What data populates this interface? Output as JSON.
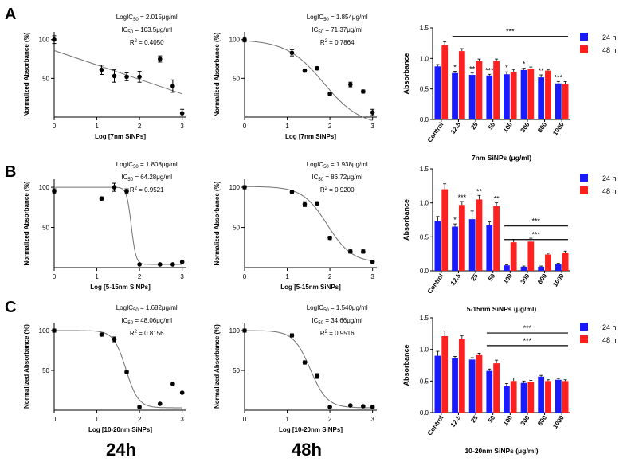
{
  "figure": {
    "bottom_labels": [
      "24h",
      "48h"
    ],
    "colors": {
      "series_24h": "#1a1aff",
      "series_48h": "#ff2020",
      "axis": "#000000",
      "fit": "#707070"
    }
  },
  "chart_data": [
    {
      "type": "scatter",
      "panel": "A",
      "col": 0,
      "xlabel": "Log [7nm SiNPs]",
      "ylabel": "Normalized Absorbance (%)",
      "xlim": [
        0,
        3.1
      ],
      "ylim": [
        0,
        110
      ],
      "xticks": [
        0,
        1,
        2,
        3
      ],
      "yticks": [
        50,
        100
      ],
      "points": [
        {
          "x": 0,
          "y": 100,
          "err": 5
        },
        {
          "x": 1.11,
          "y": 61,
          "err": 6
        },
        {
          "x": 1.41,
          "y": 53,
          "err": 8
        },
        {
          "x": 1.7,
          "y": 52,
          "err": 5
        },
        {
          "x": 2.0,
          "y": 52,
          "err": 7
        },
        {
          "x": 2.48,
          "y": 75,
          "err": 4
        },
        {
          "x": 2.78,
          "y": 40,
          "err": 8
        },
        {
          "x": 3.0,
          "y": 5,
          "err": 5
        }
      ],
      "fit": {
        "kind": "linear",
        "x": [
          0,
          3
        ],
        "y": [
          86,
          30
        ]
      },
      "annotations": [
        "LogIC50 = 2.015μg/ml",
        "IC50 = 103.5μg/ml",
        "R2 = 0.4050"
      ]
    },
    {
      "type": "scatter",
      "panel": "A",
      "col": 1,
      "xlabel": "Log [7nm SiNPs]",
      "ylabel": "Normalized Absorbance (%)",
      "xlim": [
        0,
        3.1
      ],
      "ylim": [
        0,
        110
      ],
      "xticks": [
        0,
        1,
        2,
        3
      ],
      "yticks": [
        50,
        100
      ],
      "points": [
        {
          "x": 0,
          "y": 100,
          "err": 3
        },
        {
          "x": 1.11,
          "y": 83,
          "err": 4
        },
        {
          "x": 1.41,
          "y": 60,
          "err": 2
        },
        {
          "x": 1.7,
          "y": 63,
          "err": 2
        },
        {
          "x": 2.0,
          "y": 30,
          "err": 2
        },
        {
          "x": 2.48,
          "y": 42,
          "err": 3
        },
        {
          "x": 2.78,
          "y": 33,
          "err": 2
        },
        {
          "x": 3.0,
          "y": 6,
          "err": 4
        }
      ],
      "fit": {
        "kind": "sigmoid",
        "top": 100,
        "bottom": -12,
        "logec50": 1.854,
        "hill": -1.0
      },
      "annotations": [
        "LogIC50 = 1.854μg/ml",
        "IC50 = 71.37μg/ml",
        "R2 = 0.7864"
      ]
    },
    {
      "type": "bar",
      "panel": "A",
      "col": 2,
      "xlabel": "7nm SiNPs (μg/ml)",
      "ylabel": "Absorbance",
      "ylim": [
        0,
        1.5
      ],
      "yticks": [
        0.0,
        0.5,
        1.0,
        1.5
      ],
      "ytick_labels": [
        "0.0",
        "0.5",
        "1.0",
        "1.5"
      ],
      "categories": [
        "Control",
        "12.5",
        "25",
        "50",
        "100",
        "300",
        "800",
        "1000"
      ],
      "series": [
        {
          "name": "24 h",
          "values": [
            0.87,
            0.76,
            0.73,
            0.72,
            0.74,
            0.81,
            0.69,
            0.59
          ],
          "err": [
            0.03,
            0.03,
            0.03,
            0.02,
            0.04,
            0.03,
            0.04,
            0.03
          ]
        },
        {
          "name": "48 h",
          "values": [
            1.22,
            1.12,
            0.96,
            0.96,
            0.78,
            0.83,
            0.8,
            0.58
          ],
          "err": [
            0.05,
            0.04,
            0.03,
            0.03,
            0.04,
            0.03,
            0.02,
            0.04
          ]
        }
      ],
      "stars": [
        {
          "i": 1,
          "text": "*"
        },
        {
          "i": 2,
          "text": "**"
        },
        {
          "i": 3,
          "text": "***"
        },
        {
          "i": 4,
          "text": "*"
        },
        {
          "i": 5,
          "text": "*"
        },
        {
          "i": 6,
          "text": "**"
        },
        {
          "i": 7,
          "text": "***"
        }
      ],
      "brackets": [
        {
          "from": 1,
          "to": 7,
          "y": 1.36,
          "text": "***"
        }
      ],
      "legend": [
        "24 h",
        "48 h"
      ]
    },
    {
      "type": "scatter",
      "panel": "B",
      "col": 0,
      "xlabel": "Log [5-15nm SiNPs]",
      "ylabel": "Normalized Absorbance (%)",
      "xlim": [
        0,
        3.1
      ],
      "ylim": [
        0,
        110
      ],
      "xticks": [
        0,
        1,
        2,
        3
      ],
      "yticks": [
        50,
        100
      ],
      "points": [
        {
          "x": 0,
          "y": 95,
          "err": 3
        },
        {
          "x": 1.11,
          "y": 86,
          "err": 2
        },
        {
          "x": 1.41,
          "y": 100,
          "err": 5
        },
        {
          "x": 1.7,
          "y": 95,
          "err": 3
        },
        {
          "x": 2.0,
          "y": 4,
          "err": 1
        },
        {
          "x": 2.48,
          "y": 4,
          "err": 1
        },
        {
          "x": 2.78,
          "y": 4,
          "err": 1
        },
        {
          "x": 3.0,
          "y": 7,
          "err": 1
        }
      ],
      "fit": {
        "kind": "sigmoid",
        "top": 100,
        "bottom": 4,
        "logec50": 1.808,
        "hill": -8.0
      },
      "annotations": [
        "LogIC50 = 1.808μg/ml",
        "IC50 = 64.28μg/ml",
        "R2 = 0.9521"
      ]
    },
    {
      "type": "scatter",
      "panel": "B",
      "col": 1,
      "xlabel": "Log [5-15nm SiNPs]",
      "ylabel": "Normalized Absorbance (%)",
      "xlim": [
        0,
        3.1
      ],
      "ylim": [
        0,
        110
      ],
      "xticks": [
        0,
        1,
        2,
        3
      ],
      "yticks": [
        50,
        100
      ],
      "points": [
        {
          "x": 0,
          "y": 100,
          "err": 2
        },
        {
          "x": 1.11,
          "y": 94,
          "err": 2
        },
        {
          "x": 1.41,
          "y": 79,
          "err": 3
        },
        {
          "x": 1.7,
          "y": 80,
          "err": 2
        },
        {
          "x": 2.0,
          "y": 37,
          "err": 2
        },
        {
          "x": 2.48,
          "y": 20,
          "err": 2
        },
        {
          "x": 2.78,
          "y": 20,
          "err": 2
        },
        {
          "x": 3.0,
          "y": 7,
          "err": 1
        }
      ],
      "fit": {
        "kind": "sigmoid",
        "top": 101,
        "bottom": 6,
        "logec50": 1.938,
        "hill": -1.5
      },
      "annotations": [
        "LogIC50 = 1.938μg/ml",
        "IC50 = 86.72μg/ml",
        "R2 = 0.9200"
      ]
    },
    {
      "type": "bar",
      "panel": "B",
      "col": 2,
      "xlabel": "5-15nm SiNPs (μg/ml)",
      "ylabel": "Absorbance",
      "ylim": [
        0,
        1.5
      ],
      "yticks": [
        0.0,
        0.5,
        1.0,
        1.5
      ],
      "ytick_labels": [
        "0.0",
        "0.5",
        "1.0",
        "1.5"
      ],
      "categories": [
        "Control",
        "12.5",
        "25",
        "50",
        "100",
        "300",
        "800",
        "1000"
      ],
      "series": [
        {
          "name": "24 h",
          "values": [
            0.73,
            0.65,
            0.76,
            0.67,
            0.08,
            0.06,
            0.06,
            0.1
          ],
          "err": [
            0.07,
            0.04,
            0.12,
            0.05,
            0.01,
            0.01,
            0.01,
            0.01
          ]
        },
        {
          "name": "48 h",
          "values": [
            1.2,
            0.97,
            1.05,
            0.95,
            0.42,
            0.43,
            0.24,
            0.27
          ],
          "err": [
            0.08,
            0.05,
            0.06,
            0.05,
            0.04,
            0.05,
            0.02,
            0.02
          ]
        }
      ],
      "stars": [
        {
          "i": 1,
          "text": "*"
        },
        {
          "i": 1,
          "text": "***",
          "s": 1
        },
        {
          "i": 2,
          "text": "**",
          "s": 1
        },
        {
          "i": 3,
          "text": "**",
          "s": 1
        }
      ],
      "brackets": [
        {
          "from": 4,
          "to": 7,
          "y": 0.66,
          "text": "***"
        },
        {
          "from": 4,
          "to": 7,
          "y": 0.46,
          "text": "***"
        }
      ],
      "legend": [
        "24 h",
        "48 h"
      ]
    },
    {
      "type": "scatter",
      "panel": "C",
      "col": 0,
      "xlabel": "Log [10-20nm SiNPs]",
      "ylabel": "Normalized Absorbance (%)",
      "xlim": [
        0,
        3.1
      ],
      "ylim": [
        0,
        110
      ],
      "xticks": [
        0,
        1,
        2,
        3
      ],
      "yticks": [
        50,
        100
      ],
      "points": [
        {
          "x": 0,
          "y": 100,
          "err": 2
        },
        {
          "x": 1.11,
          "y": 95,
          "err": 2
        },
        {
          "x": 1.41,
          "y": 89,
          "err": 3
        },
        {
          "x": 1.7,
          "y": 48,
          "err": 2
        },
        {
          "x": 2.0,
          "y": 4,
          "err": 2
        },
        {
          "x": 2.48,
          "y": 8,
          "err": 1
        },
        {
          "x": 2.78,
          "y": 33,
          "err": 1
        },
        {
          "x": 3.0,
          "y": 22,
          "err": 1
        }
      ],
      "fit": {
        "kind": "sigmoid",
        "top": 100,
        "bottom": 3,
        "logec50": 1.682,
        "hill": -3.0
      },
      "annotations": [
        "LogIC50 = 1.682μg/ml",
        "IC50 = 48.06μg/ml",
        "R2 = 0.8156"
      ]
    },
    {
      "type": "scatter",
      "panel": "C",
      "col": 1,
      "xlabel": "Log [10-20nm SiNPs]",
      "ylabel": "Normalized Absorbance (%)",
      "xlim": [
        0,
        3.1
      ],
      "ylim": [
        0,
        110
      ],
      "xticks": [
        0,
        1,
        2,
        3
      ],
      "yticks": [
        50,
        100
      ],
      "points": [
        {
          "x": 0,
          "y": 100,
          "err": 2
        },
        {
          "x": 1.11,
          "y": 94,
          "err": 2
        },
        {
          "x": 1.41,
          "y": 60,
          "err": 2
        },
        {
          "x": 1.7,
          "y": 43,
          "err": 3
        },
        {
          "x": 2.0,
          "y": 4,
          "err": 1
        },
        {
          "x": 2.48,
          "y": 6,
          "err": 1
        },
        {
          "x": 2.78,
          "y": 5,
          "err": 1
        },
        {
          "x": 3.0,
          "y": 4,
          "err": 1
        }
      ],
      "fit": {
        "kind": "sigmoid",
        "top": 100,
        "bottom": 3,
        "logec50": 1.54,
        "hill": -2.2
      },
      "annotations": [
        "LogIC50 = 1.540μg/ml",
        "IC50 = 34.66μg/ml",
        "R2 = 0.9516"
      ]
    },
    {
      "type": "bar",
      "panel": "C",
      "col": 2,
      "xlabel": "10-20nm SiNPs (μg/ml)",
      "ylabel": "Absorbance",
      "ylim": [
        0,
        1.5
      ],
      "yticks": [
        0.0,
        0.5,
        1.0,
        1.5
      ],
      "ytick_labels": [
        "0.0",
        "0.5",
        "1.0",
        "1.5"
      ],
      "categories": [
        "Control",
        "12.5",
        "25",
        "50",
        "100",
        "300",
        "800",
        "1000"
      ],
      "series": [
        {
          "name": "24 h",
          "values": [
            0.9,
            0.86,
            0.84,
            0.66,
            0.42,
            0.47,
            0.57,
            0.52
          ],
          "err": [
            0.07,
            0.03,
            0.03,
            0.03,
            0.04,
            0.03,
            0.02,
            0.02
          ]
        },
        {
          "name": "48 h",
          "values": [
            1.21,
            1.16,
            0.91,
            0.78,
            0.5,
            0.48,
            0.5,
            0.5
          ],
          "err": [
            0.08,
            0.06,
            0.03,
            0.05,
            0.05,
            0.03,
            0.02,
            0.02
          ]
        }
      ],
      "stars": [],
      "brackets": [
        {
          "from": 3,
          "to": 7,
          "y": 1.26,
          "text": "***"
        },
        {
          "from": 3,
          "to": 7,
          "y": 1.06,
          "text": "***"
        }
      ],
      "legend": [
        "24 h",
        "48 h"
      ]
    }
  ],
  "panel_labels": [
    "A",
    "B",
    "C"
  ]
}
